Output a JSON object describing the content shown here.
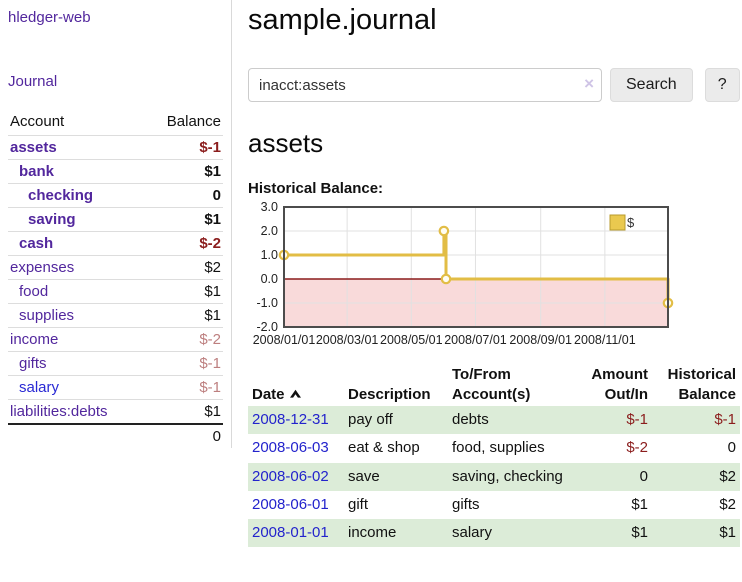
{
  "colors": {
    "purple": "#52279d",
    "blue": "#2a2ad4",
    "bluelink": "#2323cc",
    "darkred": "#8b1d1d",
    "lightred": "#bd7f7f",
    "stripe": "#dcecd8"
  },
  "app": {
    "title": "hledger-web"
  },
  "sidebar": {
    "nav": {
      "journal": "Journal"
    },
    "accounts": {
      "headers": {
        "account": "Account",
        "balance": "Balance"
      },
      "rows": [
        {
          "account": "assets",
          "balance": "$-1"
        },
        {
          "account": "bank",
          "balance": "$1"
        },
        {
          "account": "checking",
          "balance": "0"
        },
        {
          "account": "saving",
          "balance": "$1"
        },
        {
          "account": "cash",
          "balance": "$-2"
        },
        {
          "account": "expenses",
          "balance": "$2"
        },
        {
          "account": "food",
          "balance": "$1"
        },
        {
          "account": "supplies",
          "balance": "$1"
        },
        {
          "account": "income",
          "balance": "$-2"
        },
        {
          "account": "gifts",
          "balance": "$-1"
        },
        {
          "account": "salary",
          "balance": "$-1"
        },
        {
          "account": "liabilities:debts",
          "balance": "$1"
        }
      ],
      "total": "0"
    }
  },
  "main": {
    "title": "sample.journal",
    "search": {
      "value": "inacct:assets",
      "clear_icon": "×",
      "button": "Search",
      "help_button": "?"
    },
    "account_heading": "assets",
    "chart_heading": "Historical Balance:",
    "register": {
      "headers": {
        "date": "Date",
        "description": "Description",
        "accounts": "To/From Account(s)",
        "amount": "Amount Out/In",
        "balance": "Historical Balance"
      },
      "rows": [
        {
          "date": "2008-12-31",
          "description": "pay off",
          "accounts": "debts",
          "amount": "$-1",
          "balance": "$-1"
        },
        {
          "date": "2008-06-03",
          "description": "eat & shop",
          "accounts": "food, supplies",
          "amount": "$-2",
          "balance": "0"
        },
        {
          "date": "2008-06-02",
          "description": "save",
          "accounts": "saving, checking",
          "amount": "0",
          "balance": "$2"
        },
        {
          "date": "2008-06-01",
          "description": "gift",
          "accounts": "gifts",
          "amount": "$1",
          "balance": "$2"
        },
        {
          "date": "2008-01-01",
          "description": "income",
          "accounts": "salary",
          "amount": "$1",
          "balance": "$1"
        }
      ]
    }
  },
  "chart_data": {
    "type": "line",
    "step": true,
    "title": "Historical Balance",
    "xrange": [
      "2008/01/01",
      "2008/12/31"
    ],
    "ylim": [
      -2,
      3
    ],
    "yticks": [
      3,
      2,
      1,
      0,
      -1,
      -2
    ],
    "xticks": [
      "2008/01/01",
      "2008/03/01",
      "2008/05/01",
      "2008/07/01",
      "2008/09/01",
      "2008/11/01"
    ],
    "grid": true,
    "legend_position": "top-right",
    "negative_shade": true,
    "colors": {
      "grid": "#e1e1e1",
      "border": "#4c4c4c",
      "zero_line": "#8b1c1c",
      "negative_region": "#f9dada",
      "legend_border": "#b89b2e"
    },
    "series": [
      {
        "name": "$",
        "color": "#e2bd45",
        "legend_fill": "#eac94f",
        "points": [
          [
            "2008/01/01",
            1
          ],
          [
            "2008/06/01",
            2
          ],
          [
            "2008/06/03",
            0
          ],
          [
            "2008/12/31",
            -1
          ]
        ]
      }
    ]
  }
}
